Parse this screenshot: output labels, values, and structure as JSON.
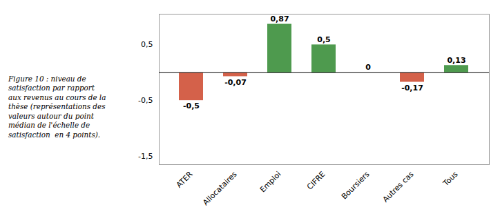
{
  "chart_data": {
    "type": "bar",
    "title": "Figure 10 : niveau de\nsatisfaction par rapport\naux revenus au cours de la\nthèse (représentations des\nvaleurs autour du point\nmédian de l'échelle de\nsatisfaction  en 4 points).",
    "categories": [
      "ATER",
      "Allocataires",
      "Emploi",
      "CIFRE",
      "Boursiers",
      "Autres cas",
      "Tous"
    ],
    "values": [
      -0.5,
      -0.07,
      0.87,
      0.5,
      0.0,
      -0.17,
      0.13
    ],
    "value_labels": [
      "-0,5",
      "-0,07",
      "0,87",
      "0,5",
      "0",
      "-0,17",
      "0,13"
    ],
    "colors": [
      "#d4614a",
      "#d4614a",
      "#4e9a4e",
      "#4e9a4e",
      "#4e9a4e",
      "#d4614a",
      "#4e9a4e"
    ],
    "ylim": [
      -1.65,
      1.05
    ],
    "yticks": [
      {
        "value": 0.5,
        "label": "0,5"
      },
      {
        "value": -0.5,
        "label": "-0,5"
      },
      {
        "value": -1.5,
        "label": "-1,5"
      }
    ],
    "data_labels": true,
    "grid": false
  }
}
